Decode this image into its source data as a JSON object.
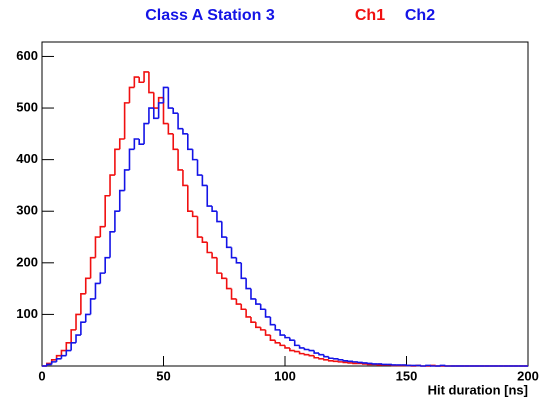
{
  "chart_data": {
    "type": "histogram",
    "title": "Class A Station 3",
    "x_label": "Hit duration [ns]",
    "bins": [
      0,
      2,
      4,
      6,
      8,
      10,
      12,
      14,
      16,
      18,
      20,
      22,
      24,
      26,
      28,
      30,
      32,
      34,
      36,
      38,
      40,
      42,
      44,
      46,
      48,
      50,
      52,
      54,
      56,
      58,
      60,
      62,
      64,
      66,
      68,
      70,
      72,
      74,
      76,
      78,
      80,
      82,
      84,
      86,
      88,
      90,
      92,
      94,
      96,
      98,
      100,
      102,
      104,
      106,
      108,
      110,
      112,
      114,
      116,
      118,
      120,
      122,
      124,
      126,
      128,
      130,
      132,
      134,
      136,
      138,
      140,
      142,
      144,
      146,
      148,
      150,
      152,
      154,
      156,
      158,
      160,
      162,
      164,
      166,
      168,
      170,
      172,
      174,
      176,
      178,
      180,
      182,
      184,
      186,
      188,
      190,
      192,
      194,
      196,
      198,
      200
    ],
    "series": [
      {
        "name": "Ch1",
        "color": "#f01010",
        "values": [
          0,
          5,
          12,
          20,
          30,
          45,
          70,
          100,
          140,
          170,
          210,
          250,
          270,
          330,
          370,
          420,
          440,
          510,
          540,
          560,
          550,
          570,
          530,
          500,
          520,
          470,
          450,
          420,
          380,
          350,
          300,
          290,
          250,
          240,
          220,
          210,
          180,
          170,
          150,
          130,
          120,
          110,
          95,
          85,
          75,
          70,
          60,
          50,
          45,
          40,
          35,
          30,
          28,
          24,
          22,
          20,
          16,
          14,
          12,
          10,
          9,
          8,
          7,
          6,
          5,
          5,
          4,
          3,
          3,
          2,
          2,
          2,
          1,
          1,
          1,
          1,
          0,
          1,
          0,
          0,
          1,
          0,
          0,
          0,
          0,
          0,
          0,
          0,
          0,
          0,
          0,
          0,
          0,
          0,
          0,
          0,
          0,
          0,
          0,
          0
        ]
      },
      {
        "name": "Ch2",
        "color": "#1414e6",
        "values": [
          0,
          3,
          8,
          14,
          20,
          30,
          45,
          60,
          85,
          100,
          130,
          160,
          180,
          210,
          260,
          300,
          340,
          380,
          420,
          440,
          430,
          470,
          500,
          480,
          510,
          540,
          500,
          490,
          460,
          450,
          420,
          400,
          370,
          350,
          310,
          300,
          280,
          250,
          230,
          210,
          200,
          170,
          150,
          130,
          120,
          110,
          95,
          80,
          70,
          60,
          55,
          50,
          40,
          35,
          32,
          30,
          25,
          22,
          18,
          15,
          14,
          12,
          10,
          9,
          8,
          7,
          6,
          5,
          4,
          4,
          3,
          3,
          2,
          2,
          2,
          1,
          1,
          1,
          0,
          1,
          0,
          0,
          1,
          0,
          0,
          0,
          0,
          0,
          0,
          0,
          0,
          0,
          0,
          0,
          0,
          0,
          0,
          0,
          0,
          0
        ]
      }
    ],
    "xlim": [
      0,
      200
    ],
    "xticks": [
      0,
      50,
      100,
      150,
      200
    ],
    "ylim": [
      0,
      628
    ],
    "yticks": [
      100,
      200,
      300,
      400,
      500,
      600
    ]
  }
}
